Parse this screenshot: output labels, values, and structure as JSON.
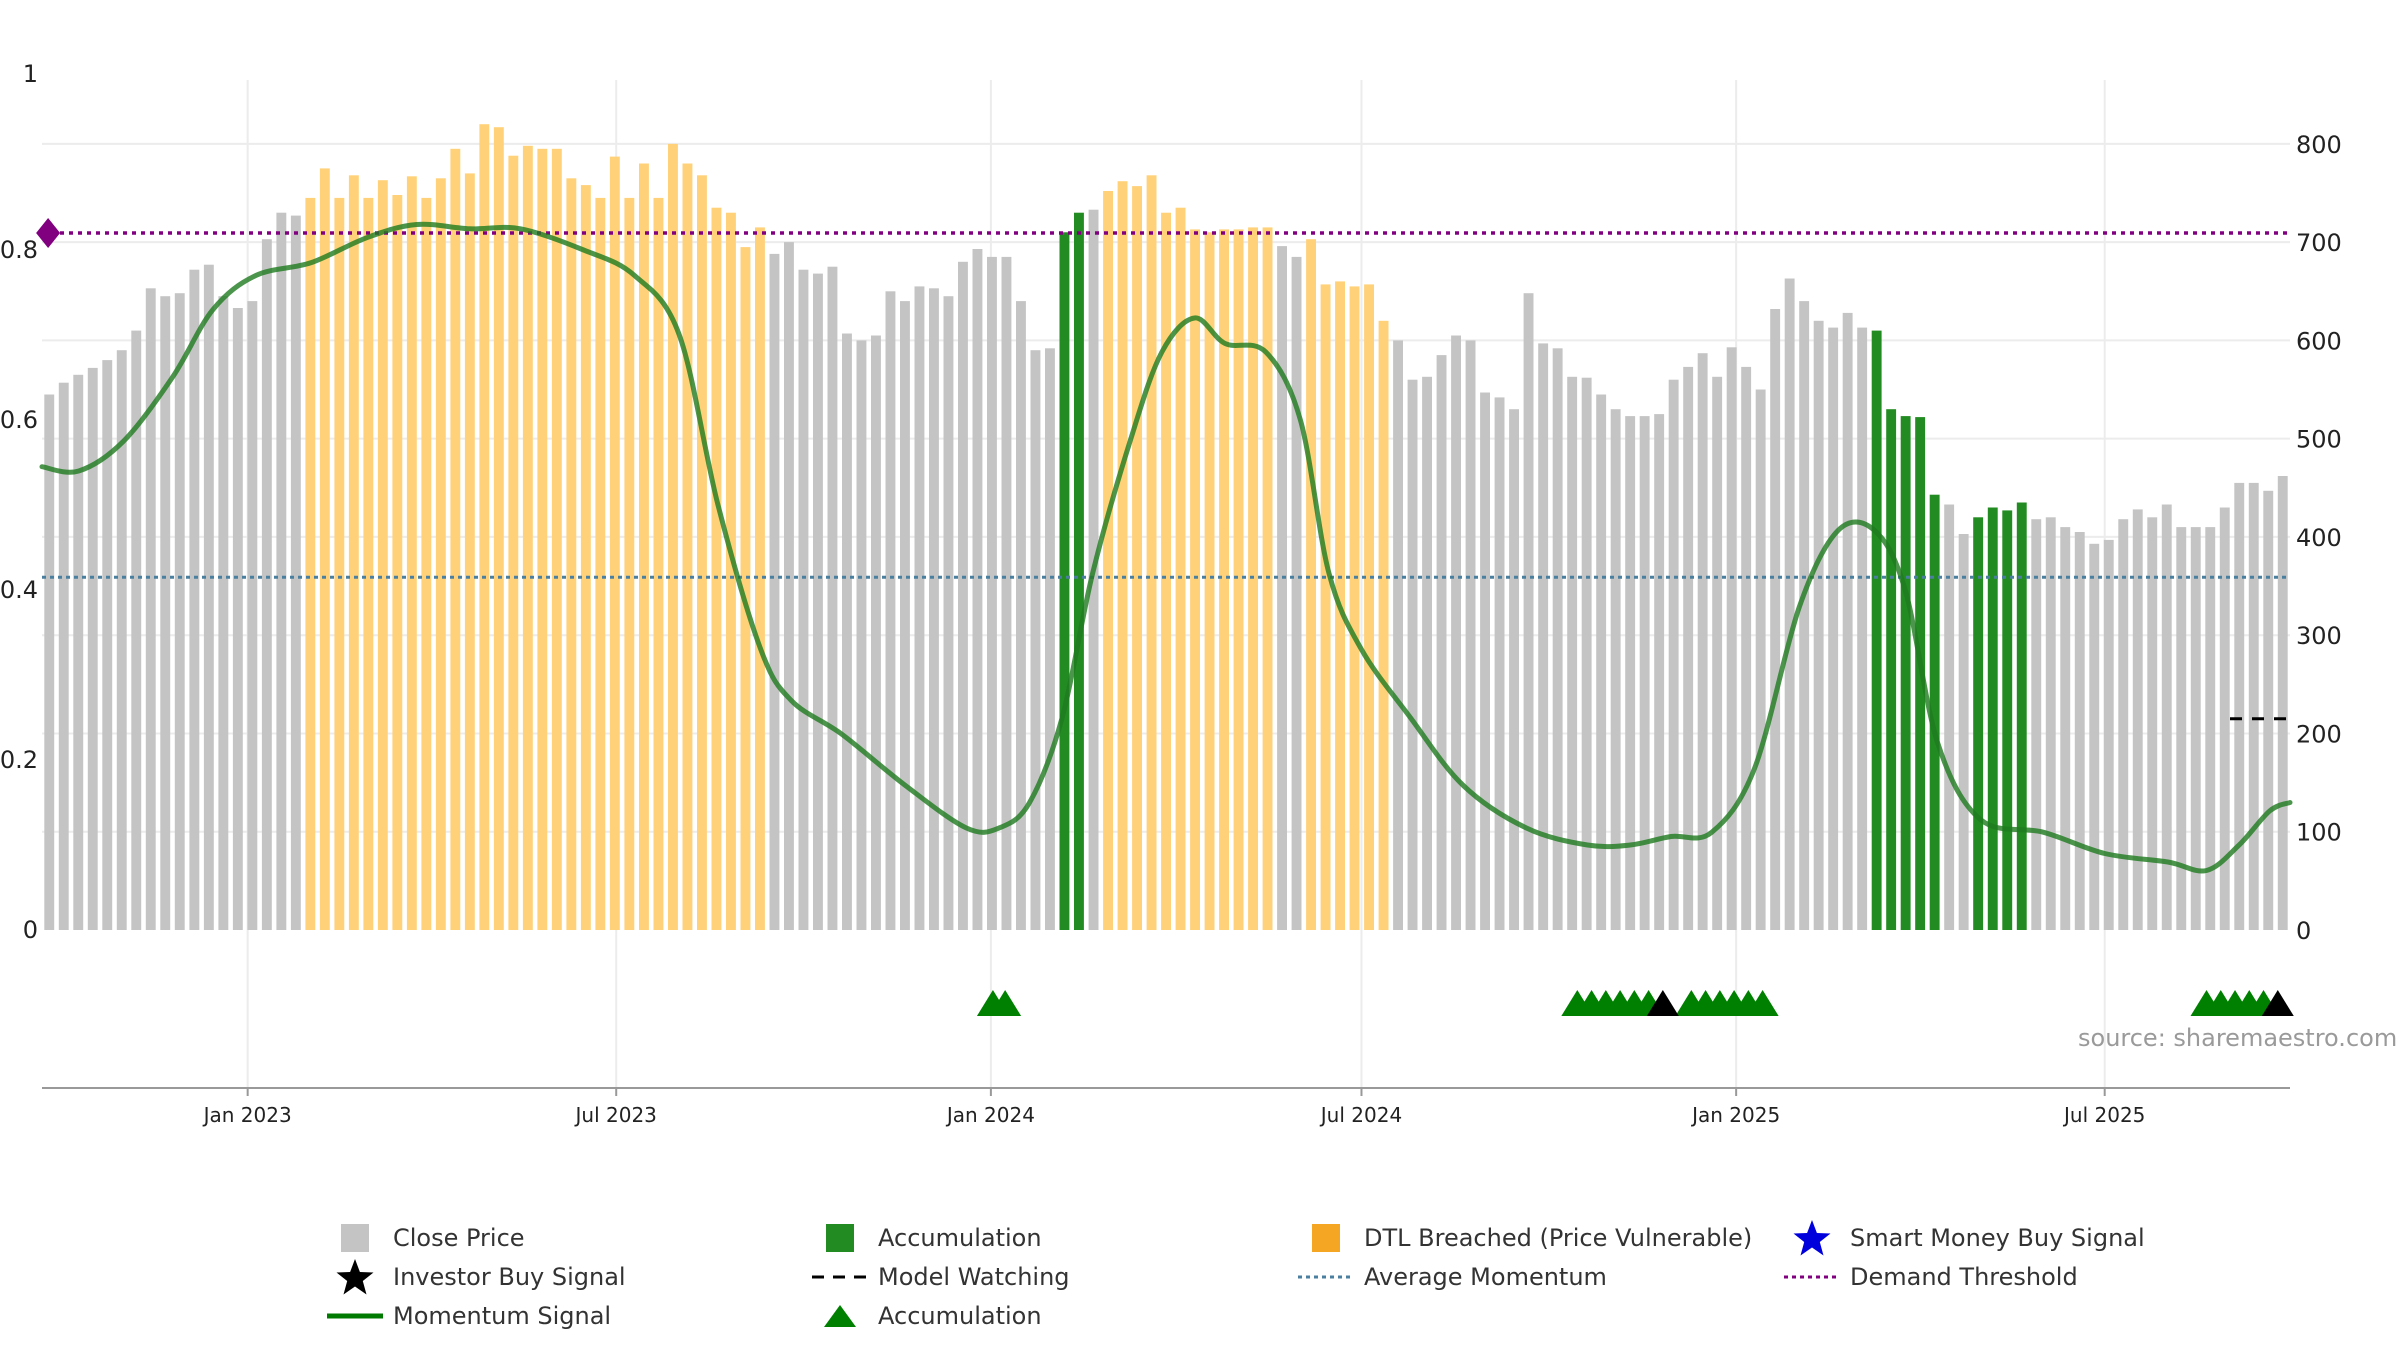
{
  "chart_data": {
    "type": "bar",
    "title": "",
    "source": "source: sharemaestro.com",
    "x_ticks": [
      "Jan 2023",
      "Jul 2023",
      "Jan 2024",
      "Jul 2024",
      "Jan 2025",
      "Jul 2025"
    ],
    "x_tick_dates": [
      "2023-01-01",
      "2023-07-01",
      "2024-01-01",
      "2024-07-01",
      "2025-01-01",
      "2025-07-01"
    ],
    "x_range": [
      "2022-09-22",
      "2025-09-30"
    ],
    "y_left_ticks": [
      "0",
      "0.2",
      "0.4",
      "0.6",
      "0.8",
      "1"
    ],
    "y_left_range": [
      0,
      1
    ],
    "y_right_ticks": [
      "0",
      "100",
      "200",
      "300",
      "400",
      "500",
      "600",
      "700",
      "800"
    ],
    "y_right_range": [
      0,
      865
    ],
    "grid": true,
    "average_momentum": 0.415,
    "demand_threshold": 0.82,
    "model_watching_value": 215,
    "bars": {
      "values": [
        545,
        557,
        565,
        572,
        580,
        590,
        610,
        653,
        645,
        648,
        672,
        677,
        645,
        633,
        640,
        703,
        730,
        727,
        745,
        775,
        745,
        768,
        745,
        763,
        748,
        767,
        745,
        765,
        795,
        770,
        820,
        817,
        788,
        798,
        795,
        795,
        765,
        758,
        745,
        787,
        745,
        780,
        745,
        800,
        780,
        768,
        735,
        730,
        695,
        715,
        688,
        700,
        672,
        668,
        675,
        607,
        600,
        605,
        650,
        640,
        655,
        653,
        645,
        680,
        693,
        685,
        685,
        640,
        590,
        592,
        710,
        730,
        733,
        752,
        762,
        757,
        768,
        730,
        735,
        713,
        710,
        713,
        713,
        715,
        715,
        696,
        685,
        703,
        657,
        660,
        655,
        657,
        620,
        600,
        560,
        563,
        585,
        605,
        600,
        547,
        542,
        530,
        648,
        597,
        592,
        563,
        562,
        545,
        530,
        523,
        523,
        525,
        560,
        573,
        587,
        563,
        593,
        573,
        550,
        632,
        663,
        640,
        620,
        613,
        628,
        613,
        610,
        530,
        523,
        522,
        443,
        433,
        403,
        420,
        430,
        427,
        435,
        418,
        420,
        410,
        405,
        393,
        397,
        418,
        428,
        420,
        433,
        410,
        410,
        410,
        430,
        455,
        455,
        447,
        462
      ],
      "states": [
        "c",
        "c",
        "c",
        "c",
        "c",
        "c",
        "c",
        "c",
        "c",
        "c",
        "c",
        "c",
        "c",
        "c",
        "c",
        "c",
        "c",
        "c",
        "d",
        "d",
        "d",
        "d",
        "d",
        "d",
        "d",
        "d",
        "d",
        "d",
        "d",
        "d",
        "d",
        "d",
        "d",
        "d",
        "d",
        "d",
        "d",
        "d",
        "d",
        "d",
        "d",
        "d",
        "d",
        "d",
        "d",
        "d",
        "d",
        "d",
        "d",
        "d",
        "c",
        "c",
        "c",
        "c",
        "c",
        "c",
        "c",
        "c",
        "c",
        "c",
        "c",
        "c",
        "c",
        "c",
        "c",
        "c",
        "c",
        "c",
        "c",
        "c",
        "a",
        "a",
        "c",
        "d",
        "d",
        "d",
        "d",
        "d",
        "d",
        "d",
        "d",
        "d",
        "d",
        "d",
        "d",
        "c",
        "c",
        "d",
        "d",
        "d",
        "d",
        "d",
        "d",
        "c",
        "c",
        "c",
        "c",
        "c",
        "c",
        "c",
        "c",
        "c",
        "c",
        "c",
        "c",
        "c",
        "c",
        "c",
        "c",
        "c",
        "c",
        "c",
        "c",
        "c",
        "c",
        "c",
        "c",
        "c",
        "c",
        "c",
        "c",
        "c",
        "c",
        "c",
        "c",
        "c",
        "a",
        "a",
        "a",
        "a",
        "a",
        "c",
        "c",
        "a",
        "a",
        "a",
        "a",
        "c",
        "c",
        "c",
        "c",
        "c",
        "c",
        "c",
        "c",
        "c",
        "c",
        "c",
        "c",
        "c",
        "c",
        "c",
        "c",
        "c",
        "c",
        "c",
        "c",
        "c",
        "c",
        "c",
        "c",
        "c",
        "c",
        "c",
        "a",
        "a",
        "a",
        "a",
        "a"
      ]
    },
    "momentum": [
      [
        "2022-09-22",
        0.545
      ],
      [
        "2022-10-10",
        0.54
      ],
      [
        "2022-11-01",
        0.575
      ],
      [
        "2022-11-25",
        0.65
      ],
      [
        "2022-12-15",
        0.73
      ],
      [
        "2023-01-05",
        0.77
      ],
      [
        "2023-02-01",
        0.785
      ],
      [
        "2023-03-01",
        0.815
      ],
      [
        "2023-03-25",
        0.83
      ],
      [
        "2023-04-20",
        0.825
      ],
      [
        "2023-05-15",
        0.825
      ],
      [
        "2023-06-15",
        0.8
      ],
      [
        "2023-07-10",
        0.77
      ],
      [
        "2023-08-01",
        0.7
      ],
      [
        "2023-08-20",
        0.5
      ],
      [
        "2023-09-10",
        0.33
      ],
      [
        "2023-09-25",
        0.27
      ],
      [
        "2023-10-20",
        0.23
      ],
      [
        "2023-11-20",
        0.17
      ],
      [
        "2023-12-20",
        0.12
      ],
      [
        "2024-01-05",
        0.12
      ],
      [
        "2024-01-20",
        0.15
      ],
      [
        "2024-02-05",
        0.25
      ],
      [
        "2024-02-20",
        0.42
      ],
      [
        "2024-03-10",
        0.58
      ],
      [
        "2024-03-25",
        0.68
      ],
      [
        "2024-04-10",
        0.72
      ],
      [
        "2024-04-25",
        0.69
      ],
      [
        "2024-05-15",
        0.68
      ],
      [
        "2024-06-01",
        0.6
      ],
      [
        "2024-06-15",
        0.42
      ],
      [
        "2024-07-01",
        0.33
      ],
      [
        "2024-07-25",
        0.25
      ],
      [
        "2024-08-20",
        0.17
      ],
      [
        "2024-09-20",
        0.12
      ],
      [
        "2024-10-20",
        0.1
      ],
      [
        "2024-11-10",
        0.1
      ],
      [
        "2024-11-30",
        0.11
      ],
      [
        "2024-12-20",
        0.115
      ],
      [
        "2025-01-10",
        0.19
      ],
      [
        "2025-02-01",
        0.38
      ],
      [
        "2025-02-20",
        0.47
      ],
      [
        "2025-03-10",
        0.47
      ],
      [
        "2025-03-25",
        0.4
      ],
      [
        "2025-04-10",
        0.22
      ],
      [
        "2025-05-01",
        0.13
      ],
      [
        "2025-06-01",
        0.115
      ],
      [
        "2025-07-01",
        0.09
      ],
      [
        "2025-08-01",
        0.08
      ],
      [
        "2025-08-20",
        0.07
      ],
      [
        "2025-09-05",
        0.1
      ],
      [
        "2025-09-20",
        0.14
      ],
      [
        "2025-09-30",
        0.15
      ]
    ],
    "markers": {
      "accumulation_triangles": [
        "2024-01-02",
        "2024-01-08",
        "2024-10-15",
        "2024-10-22",
        "2024-10-29",
        "2024-11-05",
        "2024-11-12",
        "2024-11-19",
        "2024-12-10",
        "2024-12-17",
        "2024-12-24",
        "2024-12-31",
        "2025-01-07",
        "2025-01-14",
        "2025-08-20",
        "2025-08-27",
        "2025-09-03",
        "2025-09-10",
        "2025-09-17"
      ],
      "black_triangles": [
        "2024-11-26",
        "2025-09-24"
      ]
    },
    "demand_marker_date": "2022-09-25"
  },
  "colors": {
    "close": "#c4c4c4",
    "accumulation": "#228b22",
    "dtl": "#ffd27a",
    "momentum": "#2e7d32",
    "average": "#4a7fa0",
    "threshold": "#800080",
    "grid": "#ececec",
    "smart_money": "#0000dd"
  },
  "legend": [
    {
      "label": "Close Price",
      "symbol": "gray-square-icon"
    },
    {
      "label": "Accumulation",
      "symbol": "green-square-icon"
    },
    {
      "label": "DTL Breached (Price Vulnerable)",
      "symbol": "orange-square-icon"
    },
    {
      "label": "Smart Money Buy Signal",
      "symbol": "blue-star-icon"
    },
    {
      "label": "Investor Buy Signal",
      "symbol": "black-star-icon"
    },
    {
      "label": "Model Watching",
      "symbol": "black-dash-icon"
    },
    {
      "label": "Average Momentum",
      "symbol": "blue-dotted-icon"
    },
    {
      "label": "Demand Threshold",
      "symbol": "purple-dotted-icon"
    },
    {
      "label": "Momentum Signal",
      "symbol": "green-line-icon"
    },
    {
      "label": "Accumulation",
      "symbol": "green-triangle-icon"
    }
  ]
}
